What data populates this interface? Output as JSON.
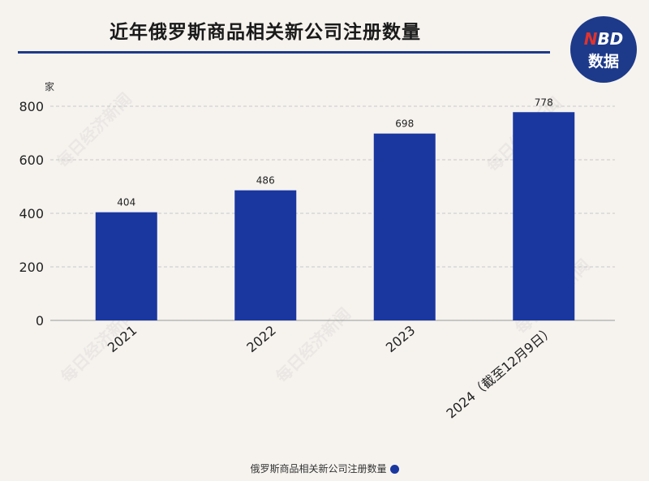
{
  "header": {
    "title": "近年俄罗斯商品相关新公司注册数量"
  },
  "logo": {
    "line1_accent": "N",
    "line1_rest": "BD",
    "line2": "数据"
  },
  "watermark": {
    "text": "每日经济新闻"
  },
  "legend": {
    "label": "俄罗斯商品相关新公司注册数量"
  },
  "colors": {
    "bar": "#1a37a0",
    "accent": "#1d3a8a",
    "grid": "#c8c8c8"
  },
  "chart_data": {
    "type": "bar",
    "title": "近年俄罗斯商品相关新公司注册数量",
    "ylabel": "家",
    "xlabel": "",
    "categories": [
      "2021",
      "2022",
      "2023",
      "2024（截至12月9日）"
    ],
    "series": [
      {
        "name": "俄罗斯商品相关新公司注册数量",
        "values": [
          404,
          486,
          698,
          778
        ]
      }
    ],
    "ylim": [
      0,
      800
    ],
    "yticks": [
      0,
      200,
      400,
      600,
      800
    ],
    "data_labels": [
      "404",
      "486",
      "698",
      "778"
    ],
    "grid": true,
    "legend_position": "bottom"
  }
}
